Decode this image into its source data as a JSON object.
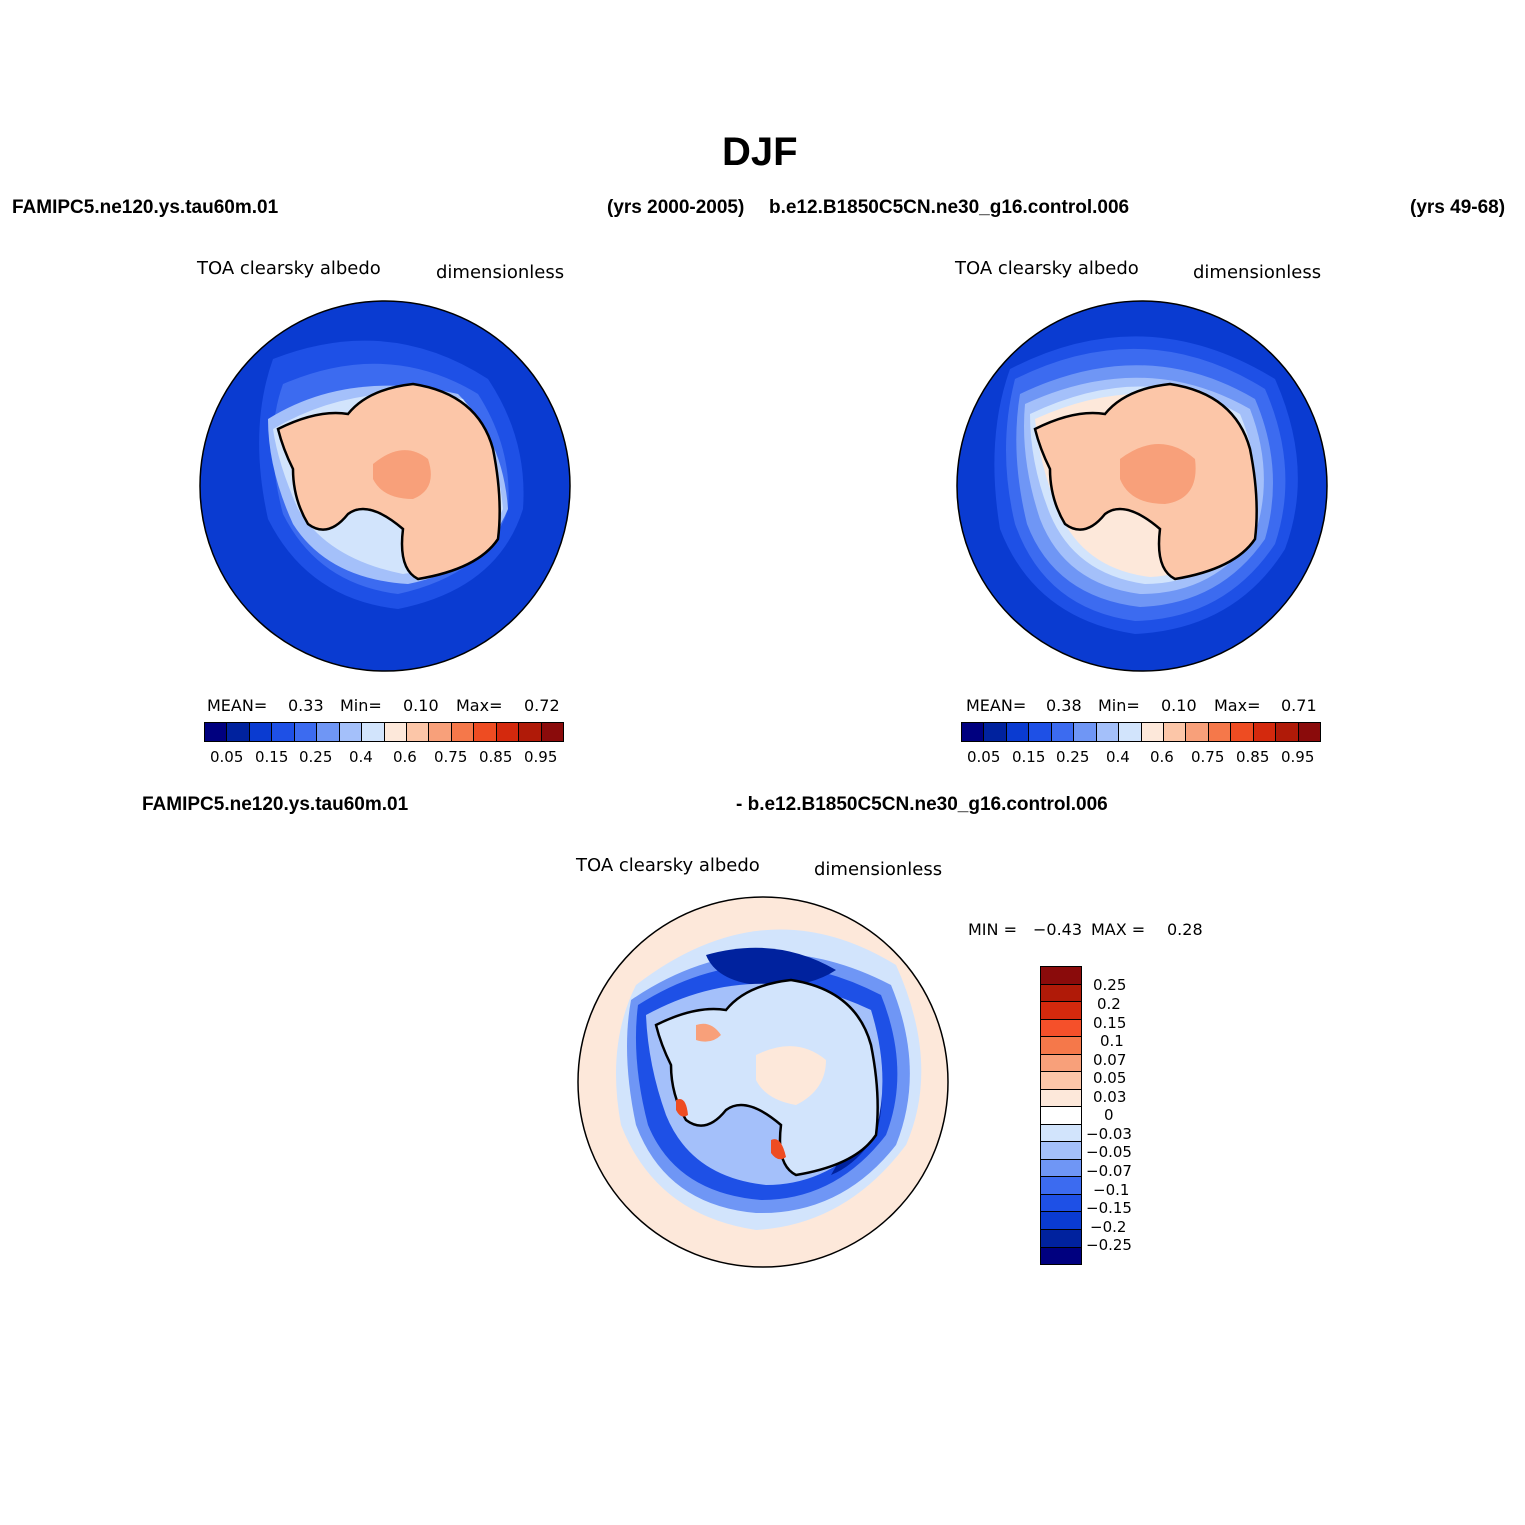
{
  "title": "DJF",
  "top": {
    "case1": "FAMIPC5.ne120.ys.tau60m.01",
    "yrs1": "(yrs 2000-2005)",
    "case2": "b.e12.B1850C5CN.ne30_g16.control.006",
    "yrs2": "(yrs 49-68)"
  },
  "diff_header": {
    "left": "FAMIPC5.ne120.ys.tau60m.01",
    "right": "- b.e12.B1850C5CN.ne30_g16.control.006"
  },
  "panels": [
    {
      "variable": "TOA clearsky albedo",
      "units": "dimensionless",
      "stats": {
        "mean_label": "MEAN=",
        "mean": "0.33",
        "min_label": "Min=",
        "min": "0.10",
        "max_label": "Max=",
        "max": "0.72"
      }
    },
    {
      "variable": "TOA clearsky albedo",
      "units": "dimensionless",
      "stats": {
        "mean_label": "MEAN=",
        "mean": "0.38",
        "min_label": "Min=",
        "min": "0.10",
        "max_label": "Max=",
        "max": "0.71"
      }
    },
    {
      "variable": "TOA clearsky albedo",
      "units": "dimensionless",
      "stats": {
        "min_label": "MIN =",
        "min": "−0.43",
        "max_label": "MAX =",
        "max": "0.28"
      }
    }
  ],
  "colorbar_main": {
    "colors": [
      "#00007f",
      "#00229e",
      "#0a3bd1",
      "#1e50e6",
      "#3c6bf0",
      "#6f96f5",
      "#a4c0fa",
      "#d2e4fc",
      "#fde8da",
      "#fcc6a8",
      "#f8a07a",
      "#f5784a",
      "#ee4c22",
      "#d4290d",
      "#b01a08",
      "#8a0b0b"
    ],
    "tick_labels": [
      "0.05",
      "0.15",
      "0.25",
      "0.4",
      "0.6",
      "0.75",
      "0.85",
      "0.95"
    ]
  },
  "colorbar_diff": {
    "colors": [
      "#8a0b0b",
      "#b01a08",
      "#d4290d",
      "#f5502a",
      "#f5784a",
      "#f8a07a",
      "#fcc6a8",
      "#fde8da",
      "#ffffff",
      "#d2e4fc",
      "#a4c0fa",
      "#6f96f5",
      "#3c6bf0",
      "#1e50e6",
      "#0a3bd1",
      "#00229e",
      "#00007f"
    ],
    "tick_labels": [
      "0.25",
      "0.2",
      "0.15",
      "0.1",
      "0.07",
      "0.05",
      "0.03",
      "0",
      "−0.03",
      "−0.05",
      "−0.07",
      "−0.1",
      "−0.15",
      "−0.2",
      "−0.25"
    ]
  },
  "map_colors": {
    "ocean_dark": "#0a3bd1",
    "ocean_mid": "#1e50e6",
    "ice_light": "#a4c0fa",
    "ice_pale": "#d2e4fc",
    "land": "#fcc6a8",
    "land_high": "#f8a07a",
    "diff_bg": "#fde8da",
    "diff_ring": "#d2e4fc",
    "diff_strong": "#1e50e6",
    "diff_dark": "#00229e"
  }
}
